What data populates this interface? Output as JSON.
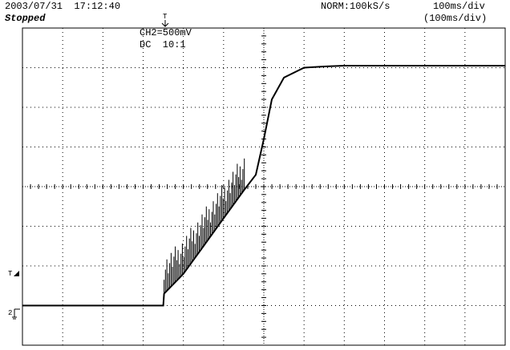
{
  "header": {
    "datetime": "2003/07/31  17:12:40",
    "status": "Stopped",
    "acquisition": "NORM:100kS/s",
    "timebase": "100ms/div",
    "timebase_zoom": "(100ms/div)"
  },
  "channel": {
    "scale": "CH2=500mV",
    "coupling": "DC  10:1"
  },
  "markers": {
    "trigger_top": "T",
    "trigger_level": "T",
    "channel_ground": "2"
  },
  "chart_data": {
    "type": "line",
    "x_unit": "div",
    "y_unit": "div",
    "xlim": [
      0,
      12
    ],
    "ylim": [
      -4,
      4
    ],
    "series": [
      {
        "values_description": "",
        "x": [
          0.0,
          3.5,
          3.52,
          4.0,
          4.5,
          5.0,
          5.5,
          5.8,
          6.0,
          6.2,
          6.5,
          7.0,
          7.5,
          8.0,
          9.0,
          12.0
        ],
        "y": [
          -3.0,
          -3.0,
          -2.7,
          -2.2,
          -1.5,
          -0.8,
          -0.1,
          0.3,
          1.2,
          2.2,
          2.75,
          3.0,
          3.03,
          3.05,
          3.05,
          3.05
        ]
      }
    ]
  }
}
